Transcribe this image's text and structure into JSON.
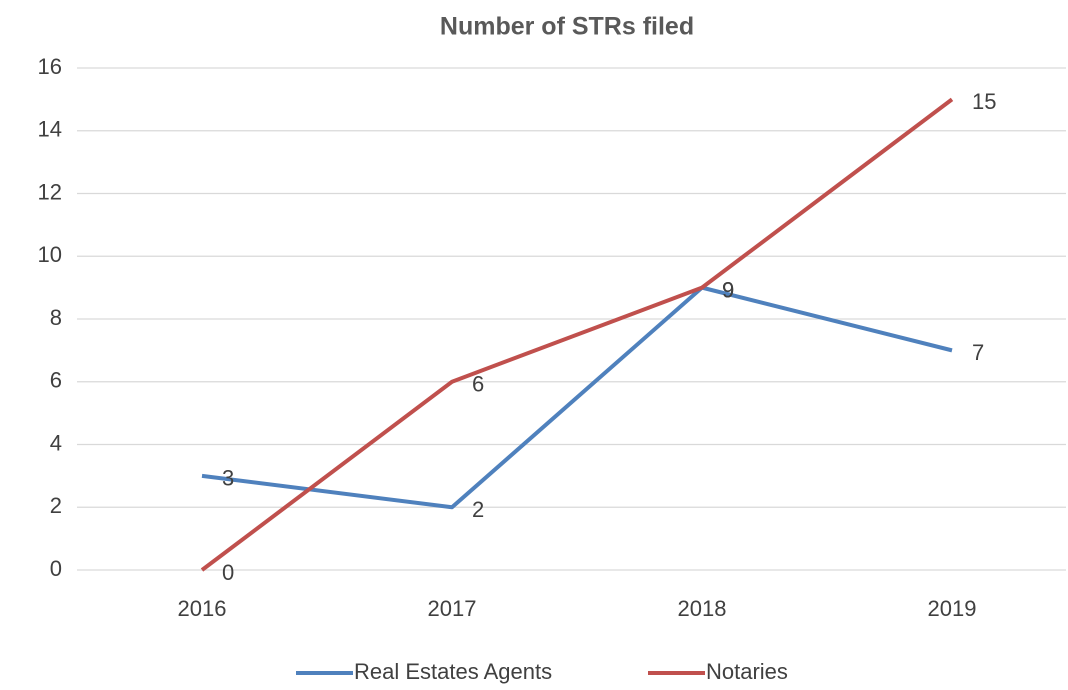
{
  "chart_data": {
    "type": "line",
    "title": "Number of STRs filed",
    "categories": [
      "2016",
      "2017",
      "2018",
      "2019"
    ],
    "series": [
      {
        "name": "Real Estates Agents",
        "color": "#4f81bd",
        "values": [
          3,
          2,
          9,
          7
        ]
      },
      {
        "name": "Notaries",
        "color": "#c0504d",
        "values": [
          0,
          6,
          9,
          15
        ]
      }
    ],
    "ylim": [
      0,
      16
    ],
    "yticks": [
      0,
      2,
      4,
      6,
      8,
      10,
      12,
      14,
      16
    ],
    "grid": true,
    "legend": "bottom"
  }
}
